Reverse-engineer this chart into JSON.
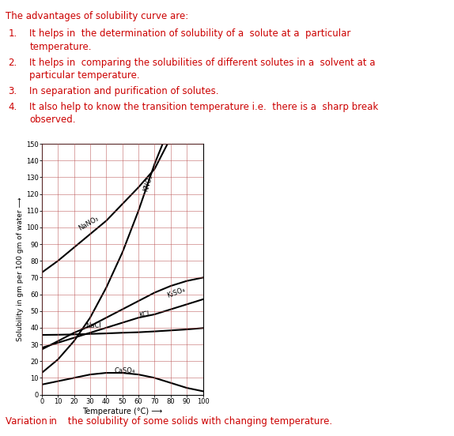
{
  "title_text": "The advantages of solubility curve are:",
  "point_nums": [
    "1.",
    "2.",
    "3.",
    "4."
  ],
  "point_lines": [
    [
      "It helps in  the determination of solubility of a  solute at a  particular",
      "temperature."
    ],
    [
      "It helps in  comparing the solubilities of different solutes in a  solvent at a",
      "particular temperature."
    ],
    [
      "In separation and purification of solutes."
    ],
    [
      "It also help to know the transition temperature i.e.  there is a  sharp break",
      "observed."
    ]
  ],
  "caption_plain": "Variation ",
  "caption_colored": "in",
  "caption_rest": "  the solubility of some solids with changing temperature.",
  "text_color": "#cc0000",
  "bg_color": "#ffffff",
  "xlim": [
    0,
    100
  ],
  "ylim": [
    0,
    150
  ],
  "xticks": [
    0,
    10,
    20,
    30,
    40,
    50,
    60,
    70,
    80,
    90,
    100
  ],
  "yticks": [
    0,
    10,
    20,
    30,
    40,
    50,
    60,
    70,
    80,
    90,
    100,
    110,
    120,
    130,
    140,
    150
  ],
  "grid_color": "#bb5555",
  "curve_color": "#000000",
  "KNO3_x": [
    0,
    10,
    20,
    30,
    40,
    50,
    60,
    70,
    75
  ],
  "KNO3_y": [
    13,
    21,
    32,
    46,
    64,
    85,
    110,
    138,
    150
  ],
  "NaNO3_x": [
    0,
    10,
    20,
    30,
    40,
    50,
    60,
    70,
    78
  ],
  "NaNO3_y": [
    73,
    80,
    88,
    96,
    104,
    114,
    124,
    135,
    150
  ],
  "KCl_x": [
    0,
    10,
    20,
    30,
    40,
    50,
    60,
    70,
    80,
    90,
    100
  ],
  "KCl_y": [
    28,
    31,
    34,
    37,
    40,
    43,
    46,
    48,
    51,
    54,
    57
  ],
  "NaCl_x": [
    0,
    10,
    20,
    30,
    40,
    50,
    60,
    70,
    80,
    90,
    100
  ],
  "NaCl_y": [
    35.7,
    35.8,
    36.0,
    36.3,
    36.6,
    37.0,
    37.3,
    37.8,
    38.4,
    39.0,
    39.8
  ],
  "K2SO4_x": [
    0,
    10,
    20,
    30,
    40,
    50,
    60,
    70,
    80,
    90,
    100
  ],
  "K2SO4_y": [
    27,
    32,
    37,
    41,
    46,
    51,
    56,
    61,
    65,
    68,
    70
  ],
  "CaSO4_x": [
    0,
    10,
    20,
    30,
    40,
    50,
    60,
    70,
    80,
    90,
    100
  ],
  "CaSO4_y": [
    6,
    8,
    10,
    12,
    13,
    13,
    12,
    10,
    7,
    4,
    2
  ]
}
